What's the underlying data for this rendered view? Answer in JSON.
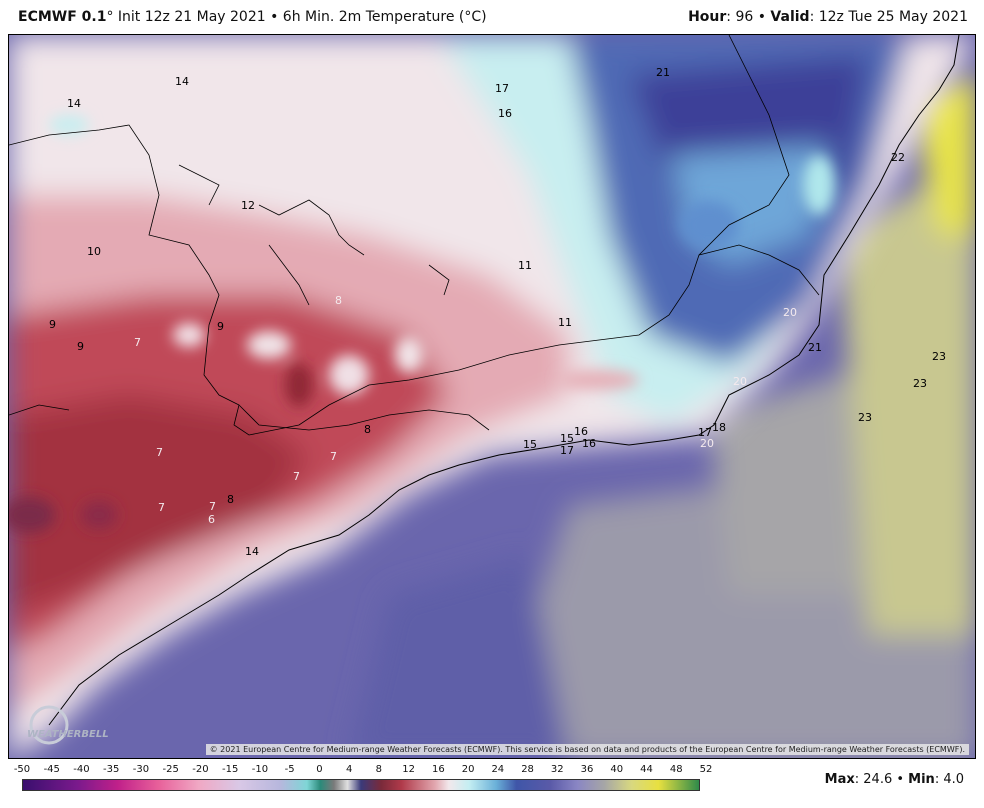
{
  "header": {
    "model": "ECMWF 0.1",
    "init_text": "° Init 12z 21 May 2021  •  6h Min. 2m Temperature (°C)",
    "hour_label": "Hour",
    "hour_value": ": 96  •  ",
    "valid_label": "Valid",
    "valid_value": ": 12z Tue 25 May 2021"
  },
  "map": {
    "credit": "© 2021 European Centre for Medium-range Weather Forecasts (ECMWF). This service is based on data and products of the European Centre for Medium-range Weather Forecasts (ECMWF).",
    "logo_text": "WEATHERBELL",
    "labels": [
      {
        "t": "14",
        "c": "dark"
      },
      {
        "t": "14",
        "c": "dark"
      },
      {
        "t": "17",
        "c": "dark"
      },
      {
        "t": "16",
        "c": "dark"
      },
      {
        "t": "21",
        "c": "dark"
      },
      {
        "t": "22",
        "c": "dark"
      },
      {
        "t": "12",
        "c": "dark"
      },
      {
        "t": "10",
        "c": "dark"
      },
      {
        "t": "11",
        "c": "dark"
      },
      {
        "t": "8",
        "c": "light"
      },
      {
        "t": "11",
        "c": "dark"
      },
      {
        "t": "9",
        "c": "dark"
      },
      {
        "t": "9",
        "c": "dark"
      },
      {
        "t": "7",
        "c": "light"
      },
      {
        "t": "9",
        "c": "dark"
      },
      {
        "t": "20",
        "c": "light"
      },
      {
        "t": "21",
        "c": "dark"
      },
      {
        "t": "23",
        "c": "dark"
      },
      {
        "t": "23",
        "c": "dark"
      },
      {
        "t": "20",
        "c": "light"
      },
      {
        "t": "23",
        "c": "dark"
      },
      {
        "t": "8",
        "c": "dark"
      },
      {
        "t": "7",
        "c": "light"
      },
      {
        "t": "7",
        "c": "light"
      },
      {
        "t": "7",
        "c": "light"
      },
      {
        "t": "15",
        "c": "dark"
      },
      {
        "t": "15",
        "c": "dark"
      },
      {
        "t": "16",
        "c": "dark"
      },
      {
        "t": "17",
        "c": "dark"
      },
      {
        "t": "16",
        "c": "dark"
      },
      {
        "t": "17",
        "c": "dark"
      },
      {
        "t": "18",
        "c": "dark"
      },
      {
        "t": "20",
        "c": "light"
      },
      {
        "t": "7",
        "c": "light"
      },
      {
        "t": "7",
        "c": "light"
      },
      {
        "t": "8",
        "c": "dark"
      },
      {
        "t": "6",
        "c": "light"
      },
      {
        "t": "14",
        "c": "dark"
      }
    ]
  },
  "colorbar": {
    "ticks": [
      "-50",
      "-45",
      "-40",
      "-35",
      "-30",
      "-25",
      "-20",
      "-15",
      "-10",
      "-5",
      "0",
      "4",
      "8",
      "12",
      "16",
      "20",
      "24",
      "28",
      "32",
      "36",
      "40",
      "44",
      "48",
      "52"
    ]
  },
  "stats": {
    "max_label": "Max",
    "max_value": ": 24.6 • ",
    "min_label": "Min",
    "min_value": ": 4.0"
  },
  "colors": {
    "cold_core": "#b83a48",
    "pink": "#e7b4bc",
    "pale": "#f4eef0",
    "cyan": "#c9eef0",
    "blue": "#4e6ab8",
    "ocean": "#6a66ad",
    "grey": "#9d9ca8",
    "yellow": "#e4e266"
  }
}
